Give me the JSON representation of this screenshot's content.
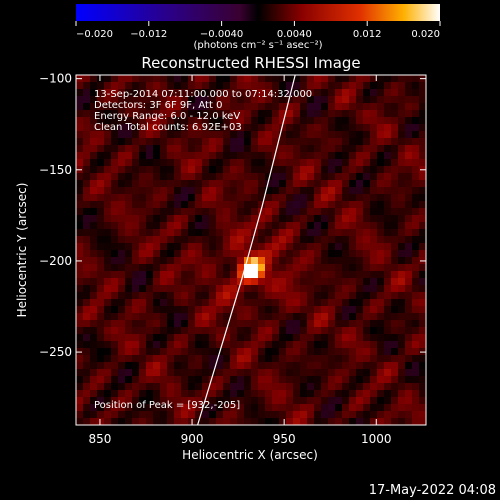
{
  "chart_data": {
    "type": "heatmap",
    "title": "Reconstructed RHESSI Image",
    "xlabel": "Heliocentric X (arcsec)",
    "ylabel": "Heliocentric Y (arcsec)",
    "xlim": [
      837,
      1027
    ],
    "ylim": [
      -290,
      -98
    ],
    "x_ticks": [
      850,
      900,
      950,
      1000
    ],
    "y_ticks": [
      -100,
      -150,
      -200,
      -250
    ],
    "colorbar": {
      "range": [
        -0.02,
        0.02
      ],
      "tick_values": [
        -0.02,
        -0.012,
        -0.004,
        0.004,
        0.012,
        0.02
      ],
      "tick_labels": [
        "−0.020",
        "−0.012",
        "−0.0040",
        "0.0040",
        "0.012",
        "0.020"
      ],
      "units_label": "(photons cm⁻² s⁻¹ asec⁻²)"
    },
    "annotations": [
      "13-Sep-2014 07:11:00.000 to 07:14:32.000",
      "Detectors: 3F 6F 9F, Att 0",
      "Energy Range: 6.0 - 12.0 keV",
      "Clean     Total counts: 6.92E+03"
    ],
    "peak_label": "Position of Peak = [932,-205]",
    "peak": {
      "x": 932,
      "y": -205,
      "value": 0.02
    },
    "limb_curve": [
      [
        903,
        -290
      ],
      [
        915,
        -250
      ],
      [
        927,
        -210
      ],
      [
        938,
        -170
      ],
      [
        948,
        -130
      ],
      [
        956,
        -98
      ]
    ]
  },
  "footer": {
    "date_stamp": "17-May-2022 04:08"
  }
}
